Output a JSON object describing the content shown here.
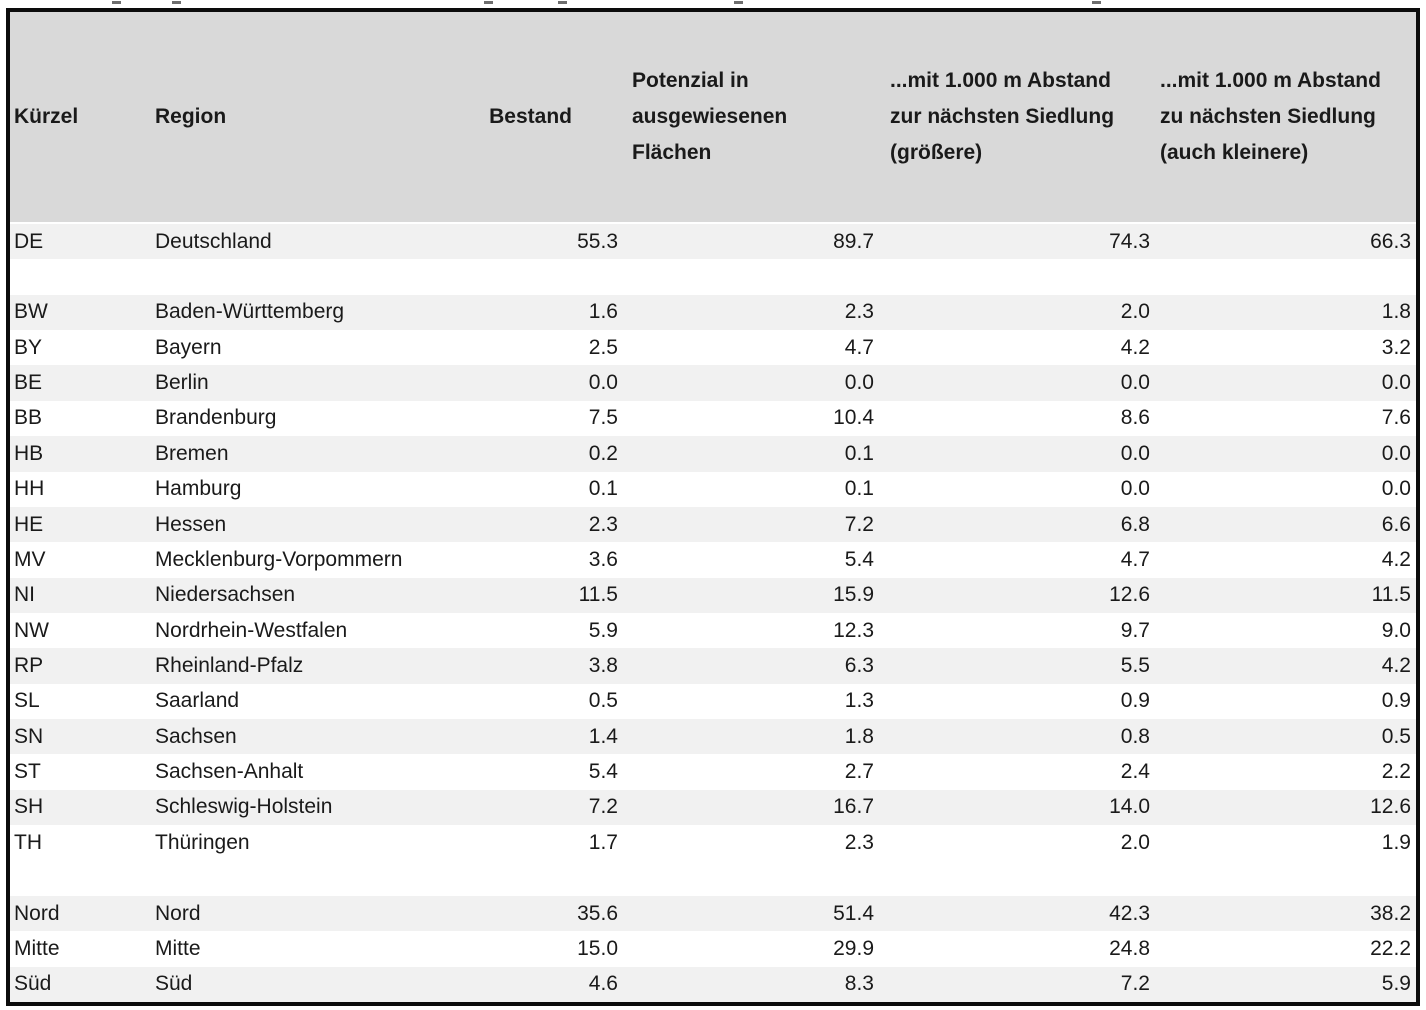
{
  "colors": {
    "header_bg": "#d9d9d9",
    "band_bg": "#f1f1f1",
    "row_bg": "#ffffff",
    "border": "#0c0c0c",
    "text": "#1a1a1a"
  },
  "chart_data": {
    "type": "table",
    "columns": [
      "Kürzel",
      "Region",
      "Bestand",
      "Potenzial in\nausgewiesenen\nFlächen",
      "...mit 1.000 m Abstand\nzur nächsten Siedlung\n(größere)",
      "...mit 1.000 m Abstand\nzu nächsten Siedlung\n(auch kleinere)"
    ],
    "rows": [
      {
        "kuerzel": "DE",
        "region": "Deutschland",
        "values": [
          "55.3",
          "89.7",
          "74.3",
          "66.3"
        ]
      },
      {
        "spacer": true
      },
      {
        "kuerzel": "BW",
        "region": "Baden-Württemberg",
        "values": [
          "1.6",
          "2.3",
          "2.0",
          "1.8"
        ]
      },
      {
        "kuerzel": "BY",
        "region": "Bayern",
        "values": [
          "2.5",
          "4.7",
          "4.2",
          "3.2"
        ]
      },
      {
        "kuerzel": "BE",
        "region": "Berlin",
        "values": [
          "0.0",
          "0.0",
          "0.0",
          "0.0"
        ]
      },
      {
        "kuerzel": "BB",
        "region": "Brandenburg",
        "values": [
          "7.5",
          "10.4",
          "8.6",
          "7.6"
        ]
      },
      {
        "kuerzel": "HB",
        "region": "Bremen",
        "values": [
          "0.2",
          "0.1",
          "0.0",
          "0.0"
        ]
      },
      {
        "kuerzel": "HH",
        "region": "Hamburg",
        "values": [
          "0.1",
          "0.1",
          "0.0",
          "0.0"
        ]
      },
      {
        "kuerzel": "HE",
        "region": "Hessen",
        "values": [
          "2.3",
          "7.2",
          "6.8",
          "6.6"
        ]
      },
      {
        "kuerzel": "MV",
        "region": "Mecklenburg-Vorpommern",
        "values": [
          "3.6",
          "5.4",
          "4.7",
          "4.2"
        ]
      },
      {
        "kuerzel": "NI",
        "region": "Niedersachsen",
        "values": [
          "11.5",
          "15.9",
          "12.6",
          "11.5"
        ]
      },
      {
        "kuerzel": "NW",
        "region": "Nordrhein-Westfalen",
        "values": [
          "5.9",
          "12.3",
          "9.7",
          "9.0"
        ]
      },
      {
        "kuerzel": "RP",
        "region": "Rheinland-Pfalz",
        "values": [
          "3.8",
          "6.3",
          "5.5",
          "4.2"
        ]
      },
      {
        "kuerzel": "SL",
        "region": "Saarland",
        "values": [
          "0.5",
          "1.3",
          "0.9",
          "0.9"
        ]
      },
      {
        "kuerzel": "SN",
        "region": "Sachsen",
        "values": [
          "1.4",
          "1.8",
          "0.8",
          "0.5"
        ]
      },
      {
        "kuerzel": "ST",
        "region": "Sachsen-Anhalt",
        "values": [
          "5.4",
          "2.7",
          "2.4",
          "2.2"
        ]
      },
      {
        "kuerzel": "SH",
        "region": "Schleswig-Holstein",
        "values": [
          "7.2",
          "16.7",
          "14.0",
          "12.6"
        ]
      },
      {
        "kuerzel": "TH",
        "region": "Thüringen",
        "values": [
          "1.7",
          "2.3",
          "2.0",
          "1.9"
        ]
      },
      {
        "spacer": true
      },
      {
        "kuerzel": "Nord",
        "region": "Nord",
        "values": [
          "35.6",
          "51.4",
          "42.3",
          "38.2"
        ]
      },
      {
        "kuerzel": "Mitte",
        "region": "Mitte",
        "values": [
          "15.0",
          "29.9",
          "24.8",
          "22.2"
        ]
      },
      {
        "kuerzel": "Süd",
        "region": "Süd",
        "values": [
          "4.6",
          "8.3",
          "7.2",
          "5.9"
        ]
      }
    ]
  }
}
